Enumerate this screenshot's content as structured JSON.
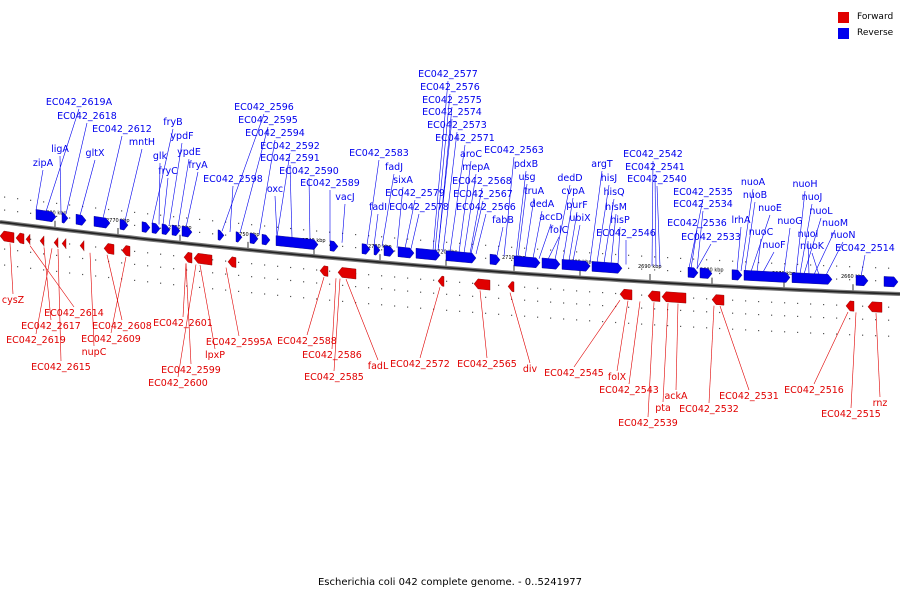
{
  "legend": {
    "forward_label": "Forward",
    "reverse_label": "Reverse",
    "forward_color": "#e00000",
    "reverse_color": "#0000ee"
  },
  "caption": "Escherichia coli 042 complete genome. - 0..5241977",
  "ticks": [
    "2780 kbp",
    "2770 kbp",
    "2760 kbp",
    "2750 kbp",
    "2740 kbp",
    "2730 kbp",
    "2720 kbp",
    "2710 kbp",
    "2700 kbp",
    "2690 kbp",
    "2680 kbp",
    "2670 kbp",
    "2660 kbp"
  ],
  "reverse_genes": [
    "EC042_2619A",
    "EC042_2618",
    "zipA",
    "ligA",
    "gltX",
    "EC042_2612",
    "mntH",
    "fryB",
    "ypdF",
    "glk",
    "ypdE",
    "fryC",
    "fryA",
    "EC042_2596",
    "EC042_2595",
    "EC042_2594",
    "EC042_2592",
    "EC042_2591",
    "EC042_2598",
    "oxc",
    "EC042_2590",
    "EC042_2589",
    "vacJ",
    "EC042_2583",
    "fadJ",
    "sixA",
    "EC042_2579",
    "fadI",
    "EC042_2578",
    "EC042_2577",
    "EC042_2576",
    "EC042_2575",
    "EC042_2574",
    "EC042_2573",
    "EC042_2571",
    "aroC",
    "mepA",
    "EC042_2568",
    "EC042_2567",
    "EC042_2566",
    "fabB",
    "EC042_2563",
    "pdxB",
    "usg",
    "truA",
    "dedA",
    "accD",
    "folC",
    "dedD",
    "cvpA",
    "purF",
    "ubiX",
    "argT",
    "hisJ",
    "hisQ",
    "hisM",
    "hisP",
    "EC042_2546",
    "EC042_2542",
    "EC042_2541",
    "EC042_2540",
    "EC042_2535",
    "EC042_2534",
    "EC042_2536",
    "EC042_2533",
    "lrhA",
    "nuoA",
    "nuoB",
    "nuoE",
    "nuoC",
    "nuoF",
    "nuoG",
    "nuoH",
    "nuoJ",
    "nuoL",
    "nuoI",
    "nuoM",
    "nuoK",
    "nuoN",
    "EC042_2514"
  ],
  "forward_genes": [
    "cysZ",
    "EC042_2614",
    "EC042_2617",
    "EC042_2619",
    "EC042_2615",
    "nupC",
    "EC042_2608",
    "EC042_2609",
    "EC042_2601",
    "EC042_2599",
    "EC042_2600",
    "lpxP",
    "EC042_2595A",
    "EC042_2588",
    "EC042_2586",
    "EC042_2585",
    "fadL",
    "EC042_2572",
    "EC042_2565",
    "div",
    "EC042_2545",
    "folX",
    "EC042_2543",
    "EC042_2539",
    "pta",
    "ackA",
    "EC042_2532",
    "EC042_2531",
    "EC042_2516",
    "EC042_2515",
    "rnz"
  ]
}
